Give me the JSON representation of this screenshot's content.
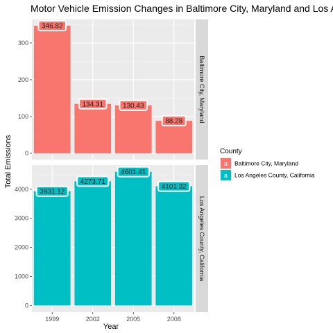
{
  "chart_data": {
    "type": "bar",
    "title": "Motor Vehicle Emission Changes in Baltimore City, Maryland and Los Angeles County, California",
    "xlabel": "Year",
    "ylabel": "Total Emissions",
    "categories": [
      "1999",
      "2002",
      "2005",
      "2008"
    ],
    "facets": [
      {
        "strip_label": "Baltimore City, Maryland",
        "values": [
          346.82,
          134.31,
          130.43,
          88.28
        ],
        "labels": [
          "346.82",
          "134.31",
          "130.43",
          "88.28"
        ],
        "ylim": [
          -17,
          364
        ],
        "yticks": [
          0,
          100,
          200,
          300
        ],
        "color": "#F8766D"
      },
      {
        "strip_label": "Los Angeles County, California",
        "values": [
          3931.12,
          4273.71,
          4601.41,
          4101.32
        ],
        "labels": [
          "3931.12",
          "4273.71",
          "4601.41",
          "4101.32"
        ],
        "ylim": [
          -230,
          4831
        ],
        "yticks": [
          0,
          1000,
          2000,
          3000,
          4000
        ],
        "color": "#00BFC4"
      }
    ],
    "legend": {
      "title": "County",
      "position": "right",
      "items": [
        {
          "label": "Baltimore City, Maryland",
          "color": "#F8766D",
          "key": "a"
        },
        {
          "label": "Los Angeles County, California",
          "color": "#00BFC4",
          "key": "a"
        }
      ]
    },
    "grid": true
  }
}
